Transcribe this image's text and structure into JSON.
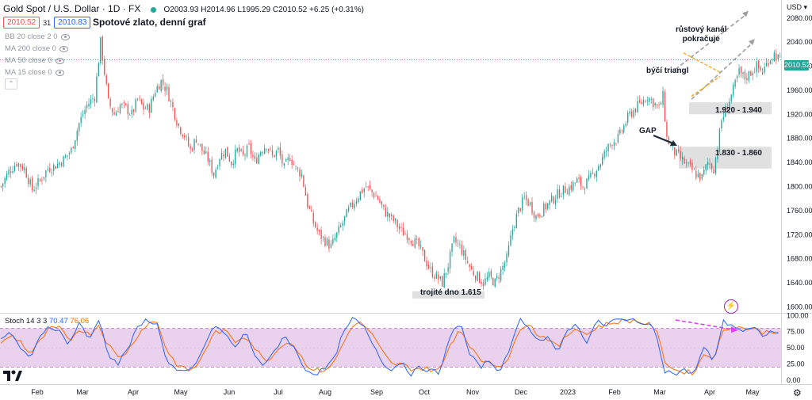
{
  "header": {
    "symbol": "Gold Spot / U.S. Dollar · 1D · FX",
    "ohlc": "O2003.93 H2014.96 L1995.29 C2010.52 +6.25 (+0.31%)",
    "sell_price": "2010.52",
    "spread": "31",
    "buy_price": "2010.83",
    "subtitle": "Spotové zlato, denní graf",
    "currency": "USD"
  },
  "indicators": [
    {
      "label": "BB 20 close 2 0"
    },
    {
      "label": "MA 200 close 0"
    },
    {
      "label": "MA 50 close 0"
    },
    {
      "label": "MA 15 close 0"
    }
  ],
  "stoch": {
    "label": "Stoch 14 3 3",
    "k_value": "70.47",
    "d_value": "76.06",
    "levels": [
      80,
      20
    ],
    "ticks": [
      "100.00",
      "75.00",
      "50.00",
      "25.00",
      "0.00"
    ]
  },
  "last_price_tag": "2010.52",
  "annotations": {
    "channel": "růstový kanál\npokračuje",
    "triangle": "býčí triangl",
    "gap": "GAP",
    "zone_upper": "1.920 - 1.940",
    "zone_lower": "1.830 - 1.860",
    "triple_bottom": "trojité dno 1.615"
  },
  "colors": {
    "up": "#26a69a",
    "down": "#ef5350",
    "stoch_k": "#2962ff",
    "stoch_d": "#ff6d00",
    "stoch_band": "#e1bee7",
    "arrow_pink": "#e040fb",
    "triangle": "#f9a825"
  },
  "chart_data": {
    "type": "candlestick",
    "y_ticks": [
      1600,
      1640,
      1680,
      1720,
      1760,
      1800,
      1840,
      1880,
      1920,
      1960,
      2000,
      2040,
      2080
    ],
    "ylim": [
      1590,
      2110
    ],
    "x_ticks": [
      "Feb",
      "Mar",
      "Apr",
      "May",
      "Jun",
      "Jul",
      "Aug",
      "Sep",
      "Oct",
      "Nov",
      "Dec",
      "2023",
      "Feb",
      "Mar",
      "Apr",
      "May"
    ],
    "close_path": [
      [
        0,
        1800
      ],
      [
        4,
        1825
      ],
      [
        8,
        1840
      ],
      [
        12,
        1830
      ],
      [
        16,
        1795
      ],
      [
        20,
        1810
      ],
      [
        24,
        1830
      ],
      [
        28,
        1835
      ],
      [
        32,
        1845
      ],
      [
        36,
        1860
      ],
      [
        40,
        1905
      ],
      [
        44,
        1935
      ],
      [
        48,
        1950
      ],
      [
        51,
        2040
      ],
      [
        53,
        1990
      ],
      [
        55,
        1940
      ],
      [
        58,
        1920
      ],
      [
        61,
        1935
      ],
      [
        64,
        1930
      ],
      [
        67,
        1920
      ],
      [
        70,
        1945
      ],
      [
        73,
        1930
      ],
      [
        76,
        1930
      ],
      [
        79,
        1960
      ],
      [
        82,
        1975
      ],
      [
        85,
        1960
      ],
      [
        88,
        1930
      ],
      [
        91,
        1900
      ],
      [
        94,
        1885
      ],
      [
        97,
        1860
      ],
      [
        100,
        1880
      ],
      [
        103,
        1860
      ],
      [
        106,
        1845
      ],
      [
        109,
        1820
      ],
      [
        112,
        1850
      ],
      [
        115,
        1860
      ],
      [
        118,
        1840
      ],
      [
        121,
        1860
      ],
      [
        124,
        1850
      ],
      [
        127,
        1865
      ],
      [
        130,
        1840
      ],
      [
        133,
        1860
      ],
      [
        136,
        1870
      ],
      [
        139,
        1850
      ],
      [
        142,
        1860
      ],
      [
        145,
        1830
      ],
      [
        148,
        1850
      ],
      [
        151,
        1830
      ],
      [
        154,
        1820
      ],
      [
        157,
        1770
      ],
      [
        160,
        1740
      ],
      [
        163,
        1720
      ],
      [
        166,
        1710
      ],
      [
        169,
        1700
      ],
      [
        172,
        1720
      ],
      [
        175,
        1740
      ],
      [
        178,
        1760
      ],
      [
        181,
        1775
      ],
      [
        184,
        1790
      ],
      [
        187,
        1800
      ],
      [
        190,
        1790
      ],
      [
        193,
        1780
      ],
      [
        196,
        1760
      ],
      [
        199,
        1750
      ],
      [
        202,
        1740
      ],
      [
        205,
        1725
      ],
      [
        208,
        1720
      ],
      [
        211,
        1710
      ],
      [
        214,
        1700
      ],
      [
        217,
        1680
      ],
      [
        220,
        1660
      ],
      [
        223,
        1650
      ],
      [
        226,
        1640
      ],
      [
        229,
        1670
      ],
      [
        232,
        1710
      ],
      [
        235,
        1700
      ],
      [
        238,
        1680
      ],
      [
        241,
        1660
      ],
      [
        244,
        1650
      ],
      [
        247,
        1640
      ],
      [
        250,
        1650
      ],
      [
        253,
        1640
      ],
      [
        256,
        1660
      ],
      [
        259,
        1680
      ],
      [
        262,
        1730
      ],
      [
        265,
        1760
      ],
      [
        268,
        1780
      ],
      [
        271,
        1770
      ],
      [
        274,
        1750
      ],
      [
        277,
        1760
      ],
      [
        280,
        1770
      ],
      [
        283,
        1780
      ],
      [
        286,
        1790
      ],
      [
        289,
        1795
      ],
      [
        292,
        1800
      ],
      [
        295,
        1810
      ],
      [
        298,
        1800
      ],
      [
        301,
        1810
      ],
      [
        304,
        1825
      ],
      [
        307,
        1840
      ],
      [
        310,
        1860
      ],
      [
        313,
        1875
      ],
      [
        316,
        1880
      ],
      [
        319,
        1900
      ],
      [
        322,
        1920
      ],
      [
        325,
        1930
      ],
      [
        328,
        1940
      ],
      [
        331,
        1950
      ],
      [
        334,
        1940
      ],
      [
        337,
        1930
      ],
      [
        339,
        1950
      ],
      [
        341,
        1880
      ],
      [
        344,
        1860
      ],
      [
        347,
        1850
      ],
      [
        350,
        1840
      ],
      [
        353,
        1830
      ],
      [
        356,
        1820
      ],
      [
        359,
        1815
      ],
      [
        362,
        1840
      ],
      [
        365,
        1830
      ],
      [
        367,
        1865
      ],
      [
        369,
        1910
      ],
      [
        372,
        1935
      ],
      [
        375,
        1960
      ],
      [
        378,
        1990
      ],
      [
        381,
        1980
      ],
      [
        384,
        1990
      ],
      [
        387,
        2000
      ],
      [
        390,
        1990
      ],
      [
        393,
        2010
      ],
      [
        396,
        2020
      ],
      [
        399,
        2010
      ]
    ],
    "stoch_k_path": [
      [
        0,
        60
      ],
      [
        5,
        75
      ],
      [
        10,
        50
      ],
      [
        15,
        30
      ],
      [
        20,
        70
      ],
      [
        25,
        85
      ],
      [
        30,
        75
      ],
      [
        35,
        55
      ],
      [
        40,
        90
      ],
      [
        45,
        60
      ],
      [
        50,
        95
      ],
      [
        55,
        40
      ],
      [
        60,
        25
      ],
      [
        65,
        50
      ],
      [
        70,
        80
      ],
      [
        75,
        95
      ],
      [
        80,
        85
      ],
      [
        85,
        30
      ],
      [
        90,
        15
      ],
      [
        95,
        10
      ],
      [
        100,
        25
      ],
      [
        105,
        60
      ],
      [
        110,
        85
      ],
      [
        115,
        70
      ],
      [
        120,
        50
      ],
      [
        125,
        75
      ],
      [
        130,
        40
      ],
      [
        135,
        20
      ],
      [
        140,
        45
      ],
      [
        145,
        70
      ],
      [
        150,
        50
      ],
      [
        155,
        20
      ],
      [
        160,
        10
      ],
      [
        165,
        15
      ],
      [
        170,
        30
      ],
      [
        175,
        70
      ],
      [
        180,
        95
      ],
      [
        185,
        85
      ],
      [
        190,
        60
      ],
      [
        195,
        30
      ],
      [
        200,
        15
      ],
      [
        205,
        30
      ],
      [
        210,
        10
      ],
      [
        215,
        20
      ],
      [
        220,
        15
      ],
      [
        225,
        10
      ],
      [
        230,
        70
      ],
      [
        235,
        90
      ],
      [
        240,
        40
      ],
      [
        245,
        20
      ],
      [
        250,
        30
      ],
      [
        255,
        15
      ],
      [
        260,
        40
      ],
      [
        265,
        95
      ],
      [
        270,
        85
      ],
      [
        275,
        60
      ],
      [
        280,
        65
      ],
      [
        285,
        40
      ],
      [
        290,
        80
      ],
      [
        295,
        85
      ],
      [
        300,
        60
      ],
      [
        305,
        90
      ],
      [
        310,
        85
      ],
      [
        315,
        95
      ],
      [
        320,
        90
      ],
      [
        325,
        95
      ],
      [
        330,
        85
      ],
      [
        335,
        80
      ],
      [
        340,
        15
      ],
      [
        345,
        10
      ],
      [
        350,
        15
      ],
      [
        355,
        10
      ],
      [
        360,
        50
      ],
      [
        365,
        30
      ],
      [
        370,
        90
      ],
      [
        375,
        85
      ],
      [
        380,
        75
      ],
      [
        385,
        80
      ],
      [
        390,
        70
      ],
      [
        395,
        75
      ],
      [
        399,
        70
      ]
    ],
    "stoch_d_path": [
      [
        0,
        55
      ],
      [
        5,
        70
      ],
      [
        10,
        60
      ],
      [
        15,
        40
      ],
      [
        20,
        60
      ],
      [
        25,
        80
      ],
      [
        30,
        80
      ],
      [
        35,
        60
      ],
      [
        40,
        80
      ],
      [
        45,
        70
      ],
      [
        50,
        85
      ],
      [
        55,
        55
      ],
      [
        60,
        35
      ],
      [
        65,
        45
      ],
      [
        70,
        70
      ],
      [
        75,
        88
      ],
      [
        80,
        90
      ],
      [
        85,
        45
      ],
      [
        90,
        25
      ],
      [
        95,
        15
      ],
      [
        100,
        20
      ],
      [
        105,
        50
      ],
      [
        110,
        75
      ],
      [
        115,
        75
      ],
      [
        120,
        60
      ],
      [
        125,
        70
      ],
      [
        130,
        50
      ],
      [
        135,
        30
      ],
      [
        140,
        40
      ],
      [
        145,
        60
      ],
      [
        150,
        55
      ],
      [
        155,
        30
      ],
      [
        160,
        15
      ],
      [
        165,
        15
      ],
      [
        170,
        25
      ],
      [
        175,
        55
      ],
      [
        180,
        85
      ],
      [
        185,
        88
      ],
      [
        190,
        70
      ],
      [
        195,
        45
      ],
      [
        200,
        25
      ],
      [
        205,
        25
      ],
      [
        210,
        18
      ],
      [
        215,
        18
      ],
      [
        220,
        17
      ],
      [
        225,
        15
      ],
      [
        230,
        55
      ],
      [
        235,
        80
      ],
      [
        240,
        55
      ],
      [
        245,
        30
      ],
      [
        250,
        30
      ],
      [
        255,
        22
      ],
      [
        260,
        30
      ],
      [
        265,
        80
      ],
      [
        270,
        88
      ],
      [
        275,
        70
      ],
      [
        280,
        65
      ],
      [
        285,
        50
      ],
      [
        290,
        70
      ],
      [
        295,
        82
      ],
      [
        300,
        70
      ],
      [
        305,
        82
      ],
      [
        310,
        86
      ],
      [
        315,
        90
      ],
      [
        320,
        92
      ],
      [
        325,
        92
      ],
      [
        330,
        88
      ],
      [
        335,
        82
      ],
      [
        340,
        30
      ],
      [
        345,
        15
      ],
      [
        350,
        13
      ],
      [
        355,
        12
      ],
      [
        360,
        40
      ],
      [
        365,
        35
      ],
      [
        370,
        75
      ],
      [
        375,
        85
      ],
      [
        380,
        80
      ],
      [
        385,
        80
      ],
      [
        390,
        74
      ],
      [
        395,
        76
      ],
      [
        399,
        76
      ]
    ],
    "last_price": 2010.52
  }
}
